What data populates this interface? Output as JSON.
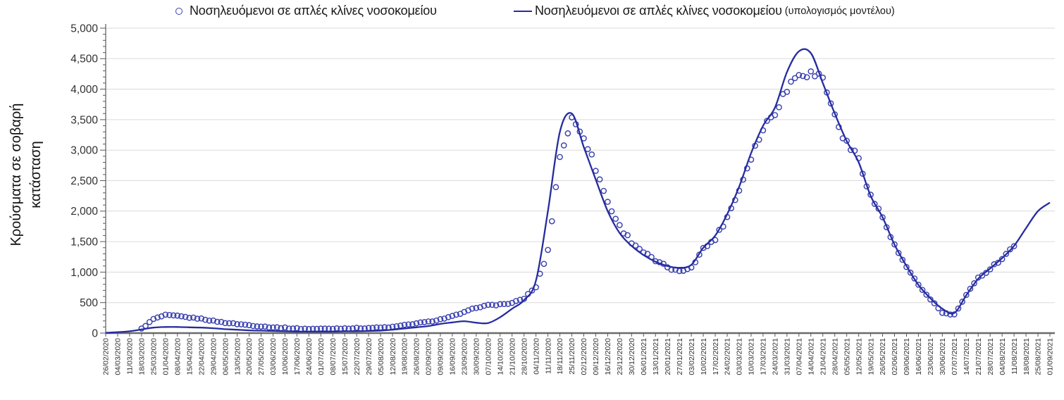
{
  "legend": {
    "observed_label": "Νοσηλευόμενοι σε απλές κλίνες νοσοκομείου",
    "model_label_main": "Νοσηλευόμενοι σε απλές κλίνες νοσοκομείου",
    "model_label_paren": "(υπολογισμός μοντέλου)"
  },
  "axes": {
    "ylabel_line1": "Κρούσματα σε σοβαρή",
    "ylabel_line2": "κατάσταση"
  },
  "chart_data": {
    "type": "scatter",
    "title": "",
    "xlabel": "",
    "ylabel": "Κρούσματα σε σοβαρή κατάσταση",
    "ylim": [
      0,
      5000
    ],
    "ytick_step": 500,
    "ytick_minor_step": 100,
    "ytick_labels": [
      "0",
      "500",
      "1,000",
      "1,500",
      "2,000",
      "2,500",
      "3,000",
      "3,500",
      "4,000",
      "4,500",
      "5,000"
    ],
    "grid": "horizontal",
    "legend_position": "top",
    "categories": [
      "26/02/2020",
      "04/03/2020",
      "11/03/2020",
      "18/03/2020",
      "25/03/2020",
      "01/04/2020",
      "08/04/2020",
      "15/04/2020",
      "22/04/2020",
      "29/04/2020",
      "06/05/2020",
      "13/05/2020",
      "20/05/2020",
      "27/05/2020",
      "03/06/2020",
      "10/06/2020",
      "17/06/2020",
      "24/06/2020",
      "01/07/2020",
      "08/07/2020",
      "15/07/2020",
      "22/07/2020",
      "29/07/2020",
      "05/08/2020",
      "12/08/2020",
      "19/08/2020",
      "26/08/2020",
      "02/09/2020",
      "09/09/2020",
      "16/09/2020",
      "23/09/2020",
      "30/09/2020",
      "07/10/2020",
      "14/10/2020",
      "21/10/2020",
      "28/10/2020",
      "04/11/2020",
      "11/11/2020",
      "18/11/2020",
      "25/11/2020",
      "02/12/2020",
      "09/12/2020",
      "16/12/2020",
      "23/12/2020",
      "30/12/2020",
      "06/01/2021",
      "13/01/2021",
      "20/01/2021",
      "27/01/2021",
      "03/02/2021",
      "10/02/2021",
      "17/02/2021",
      "24/02/2021",
      "03/03/2021",
      "10/03/2021",
      "17/03/2021",
      "24/03/2021",
      "31/03/2021",
      "07/04/2021",
      "14/04/2021",
      "21/04/2021",
      "28/04/2021",
      "05/05/2021",
      "12/05/2021",
      "19/05/2021",
      "26/05/2021",
      "02/06/2021",
      "09/06/2021",
      "16/06/2021",
      "23/06/2021",
      "30/06/2021",
      "07/07/2021",
      "14/07/2021",
      "21/07/2021",
      "28/07/2021",
      "04/08/2021",
      "11/08/2021",
      "18/08/2021",
      "25/08/2021",
      "01/09/2021"
    ],
    "series": [
      {
        "name": "Νοσηλευόμενοι σε απλές κλίνες νοσοκομείου",
        "style": "open-circle-markers",
        "color": "#3a41b0",
        "values": [
          null,
          null,
          null,
          70,
          230,
          295,
          280,
          255,
          235,
          200,
          170,
          150,
          130,
          110,
          95,
          85,
          75,
          70,
          70,
          75,
          80,
          80,
          85,
          90,
          100,
          130,
          160,
          185,
          225,
          275,
          340,
          420,
          455,
          470,
          490,
          570,
          760,
          1350,
          2900,
          3500,
          3250,
          2700,
          2150,
          1750,
          1500,
          1330,
          1180,
          1080,
          1000,
          1090,
          1380,
          1550,
          1900,
          2350,
          2900,
          3350,
          3650,
          4000,
          4300,
          4250,
          4200,
          3550,
          3100,
          2870,
          2250,
          1900,
          1430,
          1080,
          780,
          560,
          330,
          300,
          620,
          900,
          1060,
          1230,
          1440,
          null,
          null,
          null
        ]
      },
      {
        "name": "Νοσηλευόμενοι σε απλές κλίνες νοσοκομείου (υπολογισμός μοντέλου)",
        "style": "solid-line",
        "color": "#262c9e",
        "values": [
          5,
          15,
          30,
          60,
          90,
          100,
          100,
          95,
          90,
          80,
          65,
          55,
          45,
          40,
          35,
          30,
          25,
          25,
          25,
          25,
          30,
          30,
          35,
          40,
          55,
          75,
          95,
          115,
          150,
          175,
          195,
          170,
          165,
          260,
          400,
          540,
          860,
          2000,
          3300,
          3600,
          3050,
          2520,
          2000,
          1640,
          1430,
          1280,
          1170,
          1100,
          1070,
          1120,
          1400,
          1600,
          1950,
          2400,
          2950,
          3400,
          3700,
          4280,
          4620,
          4590,
          4100,
          3600,
          3150,
          2800,
          2250,
          1900,
          1450,
          1100,
          790,
          570,
          400,
          330,
          620,
          890,
          1060,
          1230,
          1430,
          1720,
          2000,
          2140
        ]
      }
    ],
    "colors": {
      "grid": "#dadada",
      "axis": "#595959",
      "x_axis_line": "#6b6b6b",
      "tick_text": "#303030",
      "scatter": "#3a41b0",
      "line": "#262c9e"
    }
  }
}
